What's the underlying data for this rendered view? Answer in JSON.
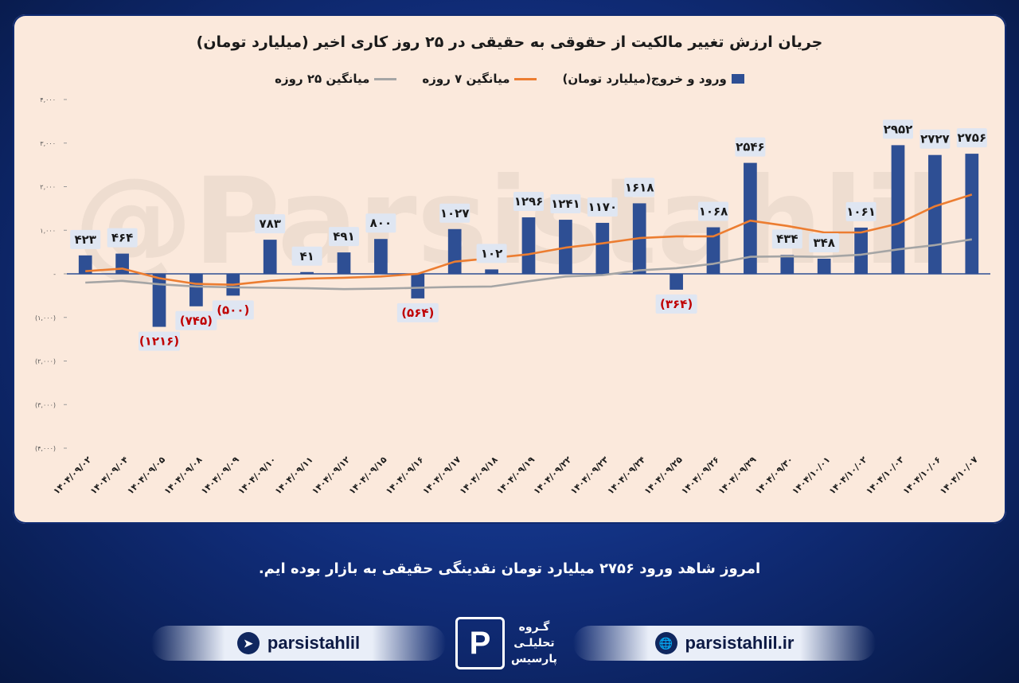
{
  "chart_data": {
    "type": "bar",
    "title": "جریان ارزش تغییر مالکیت از حقوقی به حقیقی در ۲۵ روز کاری اخیر (میلیارد تومان)",
    "legend": [
      "ورود و خروج(میلیارد تومان)",
      "میانگین ۷ روزه",
      "میانگین ۲۵ روزه"
    ],
    "legend_placement": "top",
    "ylim": [
      -4000,
      4000
    ],
    "yticks": [
      4000,
      3000,
      2000,
      1000,
      0,
      -1000,
      -2000,
      -3000,
      -4000
    ],
    "ytick_labels": [
      "۴,۰۰۰",
      "۳,۰۰۰",
      "۲,۰۰۰",
      "۱,۰۰۰",
      "-",
      "(۱,۰۰۰)",
      "(۲,۰۰۰)",
      "(۳,۰۰۰)",
      "(۴,۰۰۰)"
    ],
    "categories": [
      "۱۴۰۴/۰۹/۰۲",
      "۱۴۰۴/۰۹/۰۴",
      "۱۴۰۴/۰۹/۰۵",
      "۱۴۰۴/۰۹/۰۸",
      "۱۴۰۴/۰۹/۰۹",
      "۱۴۰۴/۰۹/۱۰",
      "۱۴۰۴/۰۹/۱۱",
      "۱۴۰۴/۰۹/۱۲",
      "۱۴۰۴/۰۹/۱۵",
      "۱۴۰۴/۰۹/۱۶",
      "۱۴۰۴/۰۹/۱۷",
      "۱۴۰۴/۰۹/۱۸",
      "۱۴۰۴/۰۹/۱۹",
      "۱۴۰۴/۰۹/۲۲",
      "۱۴۰۴/۰۹/۲۳",
      "۱۴۰۴/۰۹/۲۴",
      "۱۴۰۴/۰۹/۲۵",
      "۱۴۰۴/۰۹/۲۶",
      "۱۴۰۴/۰۹/۲۹",
      "۱۴۰۴/۰۹/۳۰",
      "۱۴۰۴/۱۰/۰۱",
      "۱۴۰۴/۱۰/۰۲",
      "۱۴۰۴/۱۰/۰۳",
      "۱۴۰۴/۱۰/۰۶",
      "۱۴۰۴/۱۰/۰۷"
    ],
    "series": [
      {
        "name": "ورود و خروج(میلیارد تومان)",
        "type": "bar",
        "color": "#2e4f94",
        "values": [
          423,
          464,
          -1216,
          -745,
          -500,
          783,
          41,
          491,
          800,
          -564,
          1027,
          102,
          1296,
          1241,
          1170,
          1618,
          -364,
          1068,
          2546,
          434,
          348,
          1061,
          2952,
          2727,
          2756
        ],
        "labels": [
          "۴۲۳",
          "۴۶۴",
          "(۱۲۱۶)",
          "(۷۴۵)",
          "(۵۰۰)",
          "۷۸۳",
          "۴۱",
          "۴۹۱",
          "۸۰۰",
          "(۵۶۴)",
          "۱۰۲۷",
          "۱۰۲",
          "۱۲۹۶",
          "۱۲۴۱",
          "۱۱۷۰",
          "۱۶۱۸",
          "(۳۶۴)",
          "۱۰۶۸",
          "۲۵۴۶",
          "۴۳۴",
          "۳۴۸",
          "۱۰۶۱",
          "۲۹۵۲",
          "۲۷۲۷",
          "۲۷۵۶"
        ]
      },
      {
        "name": "میانگین ۷ روزه",
        "type": "line",
        "color": "#ec7d31",
        "values": [
          60,
          120,
          -100,
          -230,
          -250,
          -160,
          -110,
          -90,
          -60,
          0,
          280,
          360,
          450,
          600,
          700,
          820,
          860,
          860,
          1220,
          1100,
          950,
          950,
          1150,
          1550,
          1820
        ]
      },
      {
        "name": "میانگین ۲۵ روزه",
        "type": "line",
        "color": "#a5a5a5",
        "values": [
          -200,
          -160,
          -240,
          -290,
          -310,
          -320,
          -330,
          -350,
          -340,
          -320,
          -300,
          -290,
          -170,
          -60,
          -30,
          80,
          130,
          230,
          390,
          400,
          390,
          440,
          560,
          660,
          790
        ]
      }
    ]
  },
  "watermark": "@Parsistahlil",
  "footer": {
    "message": "امروز شاهد ورود ۲۷۵۶ میلیارد تومان نقدینگی حقیقی به بازار بوده ایم.",
    "telegram_handle": "parsistahlil",
    "website": "parsistahlil.ir",
    "logo_letter": "P",
    "logo_text_1": "گـروه",
    "logo_text_2": "تحلیلـی",
    "logo_text_3": "پارسیس"
  },
  "colors": {
    "bar": "#2e4f94",
    "neg_label": "#c00000",
    "ma7": "#ec7d31",
    "ma25": "#a5a5a5",
    "panel": "#fbe9dc"
  }
}
